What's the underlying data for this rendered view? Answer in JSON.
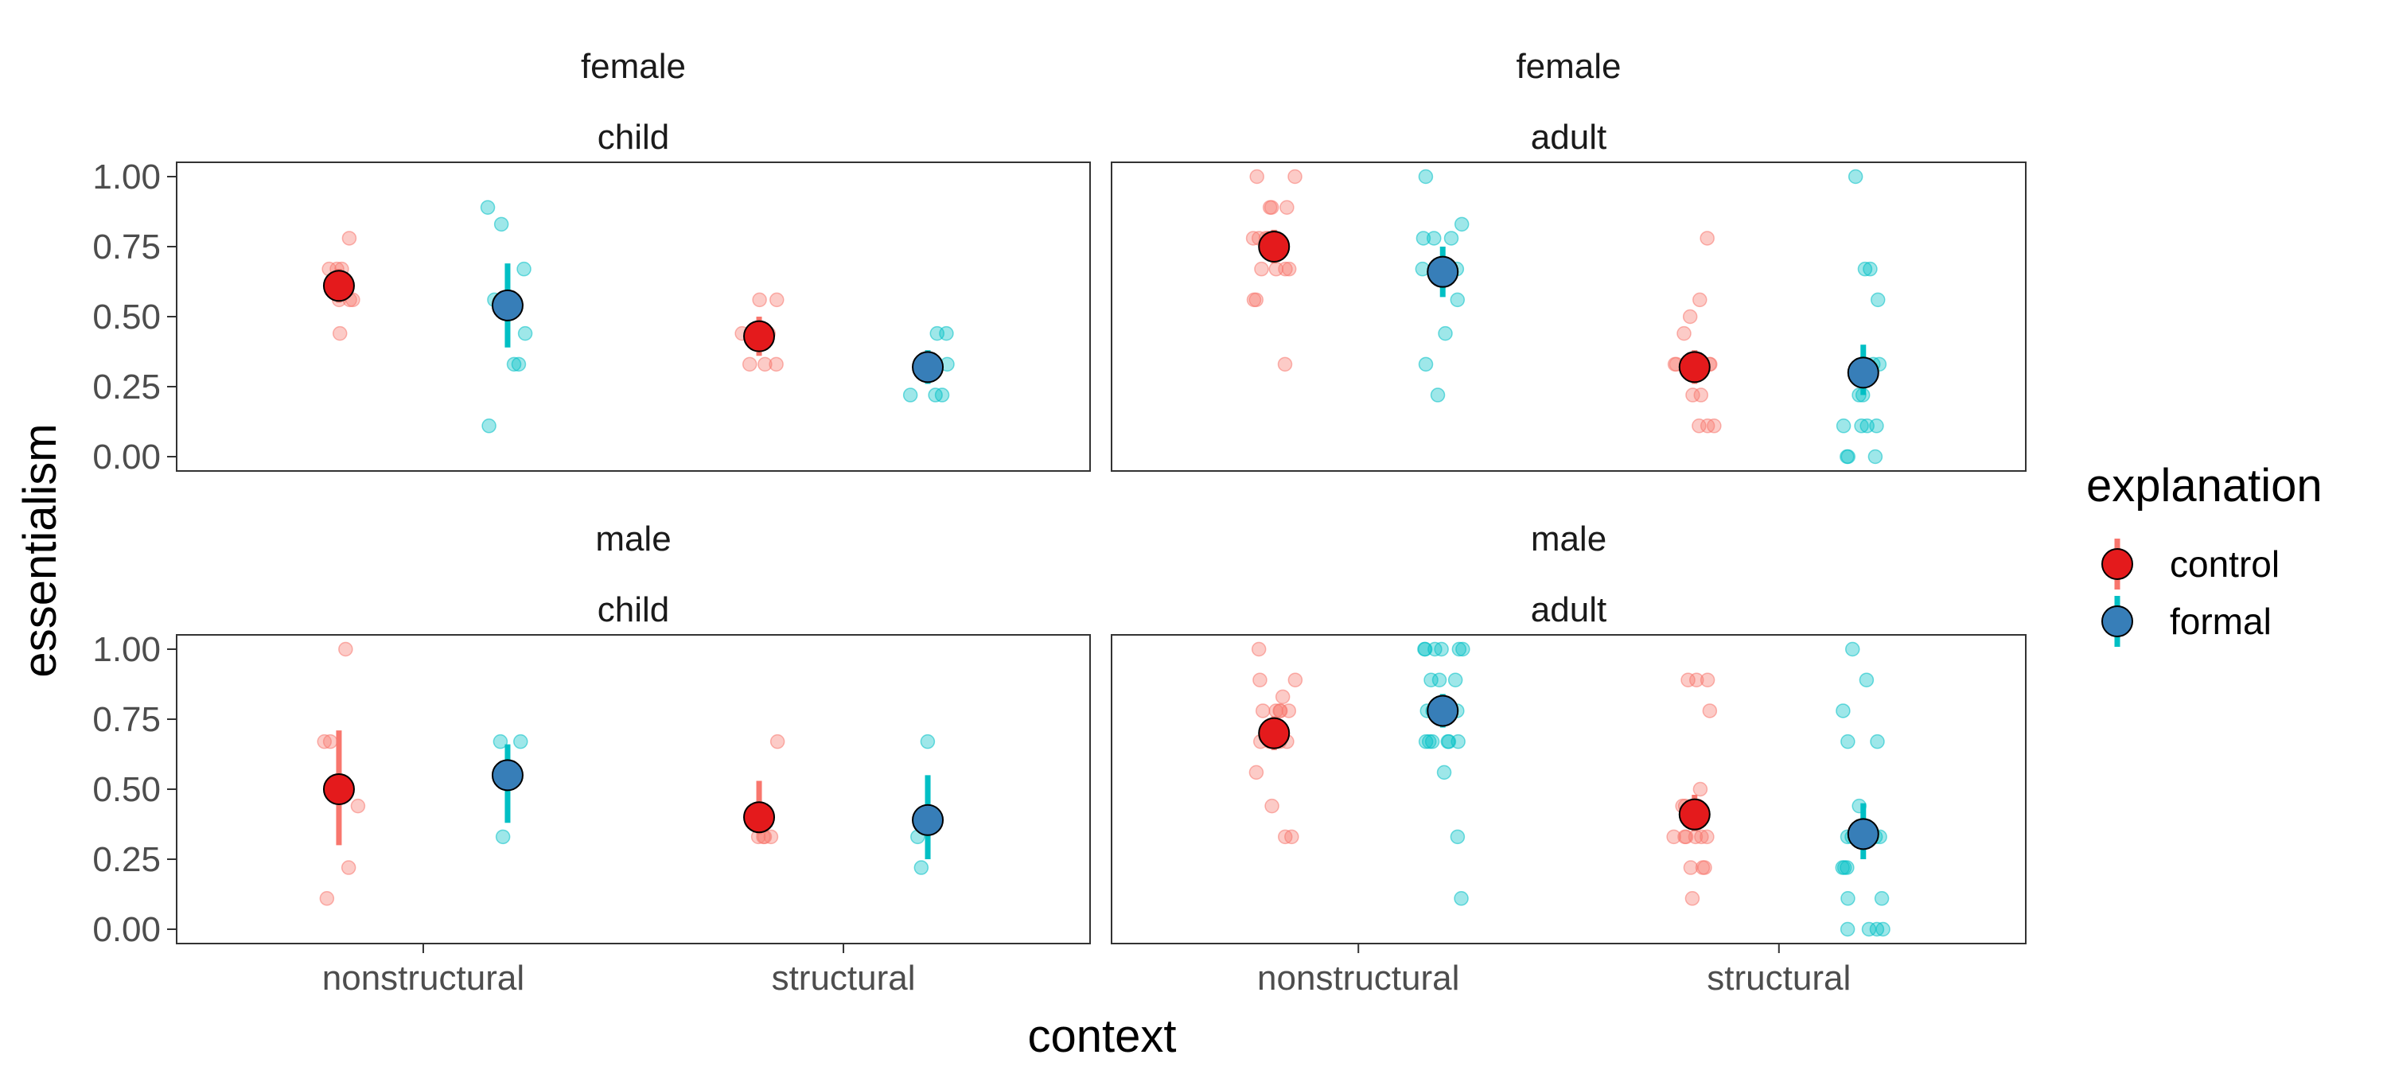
{
  "chart_data": {
    "type": "scatter",
    "xlabel": "context",
    "ylabel": "essentialism",
    "ylim": [
      0,
      1
    ],
    "y_ticks": [
      "0.00",
      "0.25",
      "0.50",
      "0.75",
      "1.00"
    ],
    "y_tick_values": [
      0,
      0.25,
      0.5,
      0.75,
      1
    ],
    "x_categories": [
      "nonstructural",
      "structural"
    ],
    "legend": {
      "title": "explanation",
      "position": "right",
      "entries": [
        {
          "name": "control",
          "point_color": "#e41a1c",
          "bar_color": "#f8766d"
        },
        {
          "name": "formal",
          "point_color": "#377eb8",
          "bar_color": "#00bfc4"
        }
      ]
    },
    "colors": {
      "control_raw": "#f8766d",
      "formal_raw": "#00bfc4",
      "panel_border": "#333333",
      "tick_text": "#4d4d4d"
    },
    "grid": false,
    "panels": [
      {
        "strip_top": "female",
        "strip_bottom": "child",
        "groups": [
          {
            "context": "nonstructural",
            "explanation": "control",
            "mean": 0.61,
            "lower": 0.55,
            "upper": 0.67,
            "raw": [
              0.78,
              0.67,
              0.67,
              0.67,
              0.56,
              0.56,
              0.56,
              0.44
            ]
          },
          {
            "context": "nonstructural",
            "explanation": "formal",
            "mean": 0.54,
            "lower": 0.39,
            "upper": 0.69,
            "raw": [
              0.89,
              0.83,
              0.67,
              0.56,
              0.44,
              0.33,
              0.33,
              0.11
            ]
          },
          {
            "context": "structural",
            "explanation": "control",
            "mean": 0.43,
            "lower": 0.36,
            "upper": 0.5,
            "raw": [
              0.56,
              0.56,
              0.44,
              0.44,
              0.33,
              0.33,
              0.33
            ]
          },
          {
            "context": "structural",
            "explanation": "formal",
            "mean": 0.32,
            "lower": 0.26,
            "upper": 0.38,
            "raw": [
              0.44,
              0.44,
              0.33,
              0.33,
              0.22,
              0.22,
              0.22,
              0.33
            ]
          }
        ]
      },
      {
        "strip_top": "female",
        "strip_bottom": "adult",
        "groups": [
          {
            "context": "nonstructural",
            "explanation": "control",
            "mean": 0.75,
            "lower": 0.69,
            "upper": 0.81,
            "raw": [
              1.0,
              1.0,
              0.89,
              0.89,
              0.89,
              0.78,
              0.78,
              0.78,
              0.78,
              0.78,
              0.67,
              0.67,
              0.67,
              0.67,
              0.56,
              0.56,
              0.33
            ]
          },
          {
            "context": "nonstructural",
            "explanation": "formal",
            "mean": 0.66,
            "lower": 0.57,
            "upper": 0.75,
            "raw": [
              1.0,
              0.83,
              0.78,
              0.78,
              0.78,
              0.67,
              0.67,
              0.67,
              0.56,
              0.44,
              0.33,
              0.22
            ]
          },
          {
            "context": "structural",
            "explanation": "control",
            "mean": 0.32,
            "lower": 0.26,
            "upper": 0.38,
            "raw": [
              0.78,
              0.56,
              0.5,
              0.44,
              0.33,
              0.33,
              0.33,
              0.33,
              0.33,
              0.33,
              0.22,
              0.22,
              0.11,
              0.11,
              0.11
            ]
          },
          {
            "context": "structural",
            "explanation": "formal",
            "mean": 0.3,
            "lower": 0.22,
            "upper": 0.4,
            "raw": [
              1.0,
              0.67,
              0.67,
              0.56,
              0.33,
              0.33,
              0.33,
              0.33,
              0.22,
              0.22,
              0.11,
              0.11,
              0.11,
              0.11,
              0.0,
              0.0,
              0.0
            ]
          }
        ]
      },
      {
        "strip_top": "male",
        "strip_bottom": "child",
        "groups": [
          {
            "context": "nonstructural",
            "explanation": "control",
            "mean": 0.5,
            "lower": 0.3,
            "upper": 0.71,
            "raw": [
              1.0,
              0.67,
              0.67,
              0.44,
              0.22,
              0.11
            ]
          },
          {
            "context": "nonstructural",
            "explanation": "formal",
            "mean": 0.55,
            "lower": 0.38,
            "upper": 0.66,
            "raw": [
              0.67,
              0.67,
              0.33
            ]
          },
          {
            "context": "structural",
            "explanation": "control",
            "mean": 0.4,
            "lower": 0.34,
            "upper": 0.53,
            "raw": [
              0.67,
              0.33,
              0.33,
              0.33,
              0.33
            ]
          },
          {
            "context": "structural",
            "explanation": "formal",
            "mean": 0.39,
            "lower": 0.25,
            "upper": 0.55,
            "raw": [
              0.67,
              0.33,
              0.22
            ]
          }
        ]
      },
      {
        "strip_top": "male",
        "strip_bottom": "adult",
        "groups": [
          {
            "context": "nonstructural",
            "explanation": "control",
            "mean": 0.7,
            "lower": 0.64,
            "upper": 0.76,
            "raw": [
              1.0,
              0.89,
              0.89,
              0.83,
              0.78,
              0.78,
              0.78,
              0.78,
              0.78,
              0.67,
              0.67,
              0.67,
              0.67,
              0.67,
              0.56,
              0.44,
              0.33,
              0.33
            ]
          },
          {
            "context": "nonstructural",
            "explanation": "formal",
            "mean": 0.78,
            "lower": 0.72,
            "upper": 0.84,
            "raw": [
              1.0,
              1.0,
              1.0,
              1.0,
              1.0,
              1.0,
              0.89,
              0.89,
              0.89,
              0.78,
              0.78,
              0.78,
              0.67,
              0.67,
              0.67,
              0.67,
              0.67,
              0.67,
              0.56,
              0.33,
              0.11
            ]
          },
          {
            "context": "structural",
            "explanation": "control",
            "mean": 0.41,
            "lower": 0.35,
            "upper": 0.48,
            "raw": [
              0.89,
              0.89,
              0.89,
              0.78,
              0.5,
              0.44,
              0.44,
              0.44,
              0.33,
              0.33,
              0.33,
              0.33,
              0.33,
              0.33,
              0.22,
              0.22,
              0.22,
              0.11
            ]
          },
          {
            "context": "structural",
            "explanation": "formal",
            "mean": 0.34,
            "lower": 0.25,
            "upper": 0.45,
            "raw": [
              1.0,
              0.89,
              0.78,
              0.67,
              0.67,
              0.44,
              0.33,
              0.33,
              0.33,
              0.33,
              0.22,
              0.22,
              0.22,
              0.11,
              0.11,
              0.0,
              0.0,
              0.0,
              0.0
            ]
          }
        ]
      }
    ]
  }
}
